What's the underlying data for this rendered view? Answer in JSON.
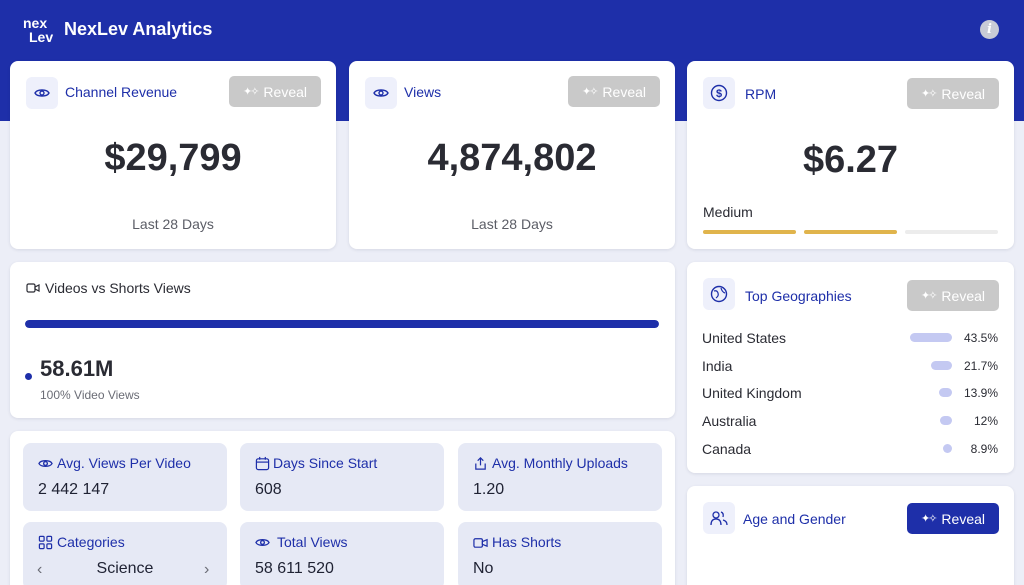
{
  "app": {
    "title": "NexLev Analytics",
    "info_icon": "info-icon"
  },
  "colors": {
    "brand": "#1e2fa9",
    "reveal_disabled": "#c9c9c9",
    "rpm_active": "#e0b44c",
    "geo_bar": "#c4c9f2"
  },
  "reveal_label": "Reveal",
  "channel_revenue": {
    "label": "Channel Revenue",
    "value": "$29,799",
    "period": "Last 28 Days",
    "icon": "eye-icon"
  },
  "views": {
    "label": "Views",
    "value": "4,874,802",
    "period": "Last 28 Days",
    "icon": "eye-icon"
  },
  "rpm": {
    "label": "RPM",
    "value": "$6.27",
    "level": "Medium",
    "level_segments_filled": 2,
    "level_segments_total": 3,
    "icon": "dollar-circle-icon"
  },
  "videos_vs_shorts": {
    "title": "Videos vs Shorts Views",
    "total": "58.61M",
    "breakdown": "100% Video Views",
    "video_fraction": 1.0,
    "icon": "video-camera-icon"
  },
  "top_geographies": {
    "label": "Top Geographies",
    "icon": "globe-icon",
    "rows": [
      {
        "country": "United States",
        "pct": "43.5%",
        "value": 43.5
      },
      {
        "country": "India",
        "pct": "21.7%",
        "value": 21.7
      },
      {
        "country": "United Kingdom",
        "pct": "13.9%",
        "value": 13.9
      },
      {
        "country": "Australia",
        "pct": "12%",
        "value": 12
      },
      {
        "country": "Canada",
        "pct": "8.9%",
        "value": 8.9
      }
    ]
  },
  "age_gender": {
    "label": "Age and Gender",
    "icon": "users-icon"
  },
  "stats": {
    "avg_views": {
      "label": "Avg. Views Per Video",
      "value": "2 442 147",
      "icon": "eye-icon"
    },
    "days_since_start": {
      "label": "Days Since Start",
      "value": "608",
      "icon": "calendar-icon"
    },
    "avg_uploads": {
      "label": "Avg. Monthly Uploads",
      "value": "1.20",
      "icon": "upload-icon"
    },
    "categories": {
      "label": "Categories",
      "value": "Science",
      "icon": "grid-icon"
    },
    "total_views": {
      "label": "Total Views",
      "value": "58 611 520",
      "icon": "eye-icon"
    },
    "has_shorts": {
      "label": "Has Shorts",
      "value": "No",
      "icon": "video-camera-icon"
    }
  }
}
